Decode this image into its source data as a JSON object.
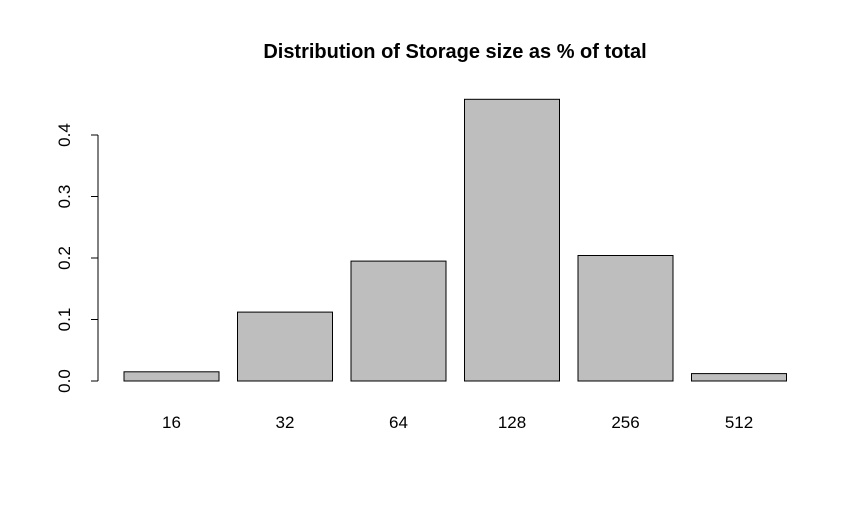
{
  "chart_data": {
    "type": "bar",
    "title": "Distribution of Storage size as % of total",
    "xlabel": "",
    "ylabel": "",
    "categories": [
      "16",
      "32",
      "64",
      "128",
      "256",
      "512"
    ],
    "values": [
      0.015,
      0.112,
      0.195,
      0.458,
      0.204,
      0.012
    ],
    "yticks": [
      0.0,
      0.1,
      0.2,
      0.3,
      0.4
    ],
    "ytick_labels": [
      "0.0",
      "0.1",
      "0.2",
      "0.3",
      "0.4"
    ],
    "ylim": [
      0,
      0.46
    ],
    "grid": false,
    "legend": "none",
    "colors": {
      "bar_fill": "#bebebe",
      "bar_stroke": "#000000",
      "axis": "#000000",
      "background": "#ffffff"
    }
  }
}
